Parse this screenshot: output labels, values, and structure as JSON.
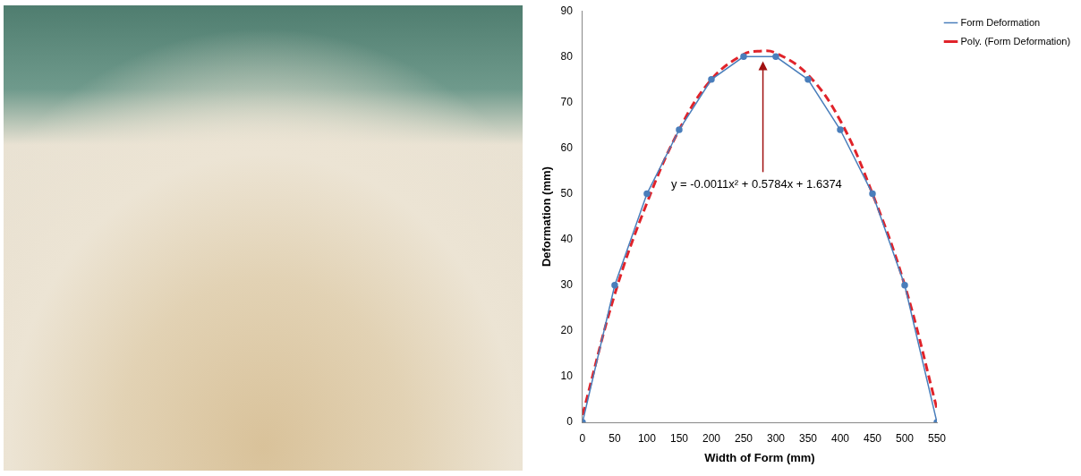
{
  "chart_data": {
    "type": "line",
    "xlabel": "Width of Form (mm)",
    "ylabel": "Deformation (mm)",
    "xlim": [
      0,
      550
    ],
    "xticks": [
      0,
      50,
      100,
      150,
      200,
      250,
      300,
      350,
      400,
      450,
      500,
      550
    ],
    "ylim": [
      0,
      90
    ],
    "yticks": [
      0,
      10,
      20,
      30,
      40,
      50,
      60,
      70,
      80,
      90
    ],
    "grid": false,
    "legend": "right",
    "series": [
      {
        "name": "Form Deformation",
        "color": "#4a7ebb",
        "marker": "circle",
        "line_style": "solid",
        "x": [
          0,
          50,
          100,
          150,
          200,
          250,
          300,
          350,
          400,
          450,
          500,
          550
        ],
        "values": [
          0,
          30,
          50,
          64,
          75,
          80,
          80,
          75,
          64,
          50,
          30,
          0
        ]
      },
      {
        "name": "Poly. (Form Deformation)",
        "color": "#e0232a",
        "marker": "none",
        "line_style": "dashed",
        "x": [
          0,
          50,
          100,
          150,
          200,
          250,
          275,
          300,
          350,
          400,
          450,
          500,
          550
        ],
        "values": [
          1.6,
          28,
          48,
          64,
          75,
          80.5,
          81.2,
          80.8,
          76,
          66,
          50,
          30,
          3
        ]
      }
    ],
    "annotations": [
      {
        "text": "y = -0.0011x² + 0.5784x + 1.6374",
        "x": 270,
        "y": 52,
        "arrow_to": [
          280,
          79
        ]
      }
    ]
  }
}
